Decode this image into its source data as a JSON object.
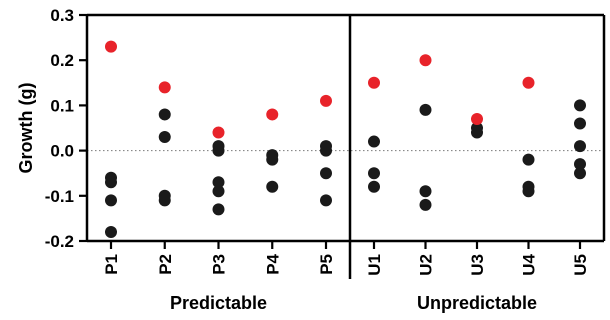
{
  "chart_data": {
    "type": "scatter",
    "ylabel": "Growth (g)",
    "ylim": [
      -0.2,
      0.3
    ],
    "y_ticks": [
      "-0.2",
      "-0.1",
      "0.0",
      "0.1",
      "0.2",
      "0.3"
    ],
    "reference_line": {
      "y": 0.0,
      "style": "dotted"
    },
    "grid": false,
    "legend": "none",
    "colors": {
      "individual": "#1a1a1a",
      "highlight": "#e8232a"
    },
    "groups": [
      {
        "label": "Predictable",
        "categories": [
          {
            "label": "P1",
            "black": [
              -0.06,
              -0.07,
              -0.11,
              -0.18
            ],
            "red": [
              0.23
            ]
          },
          {
            "label": "P2",
            "black": [
              0.08,
              0.03,
              -0.1,
              -0.11
            ],
            "red": [
              0.14
            ]
          },
          {
            "label": "P3",
            "black": [
              0.01,
              0.0,
              -0.07,
              -0.09,
              -0.13
            ],
            "red": [
              0.04
            ]
          },
          {
            "label": "P4",
            "black": [
              -0.01,
              -0.02,
              -0.08
            ],
            "red": [
              0.08
            ]
          },
          {
            "label": "P5",
            "black": [
              0.01,
              0.0,
              -0.05,
              -0.11
            ],
            "red": [
              0.11
            ]
          }
        ]
      },
      {
        "label": "Unpredictable",
        "categories": [
          {
            "label": "U1",
            "black": [
              0.02,
              -0.05,
              -0.08
            ],
            "red": [
              0.15
            ]
          },
          {
            "label": "U2",
            "black": [
              0.09,
              -0.09,
              -0.12
            ],
            "red": [
              0.2
            ]
          },
          {
            "label": "U3",
            "black": [
              0.05,
              0.04
            ],
            "red": [
              0.07
            ]
          },
          {
            "label": "U4",
            "black": [
              -0.02,
              -0.08,
              -0.09
            ],
            "red": [
              0.15
            ]
          },
          {
            "label": "U5",
            "black": [
              0.1,
              0.06,
              0.01,
              -0.03,
              -0.05
            ],
            "red": []
          }
        ]
      }
    ]
  }
}
